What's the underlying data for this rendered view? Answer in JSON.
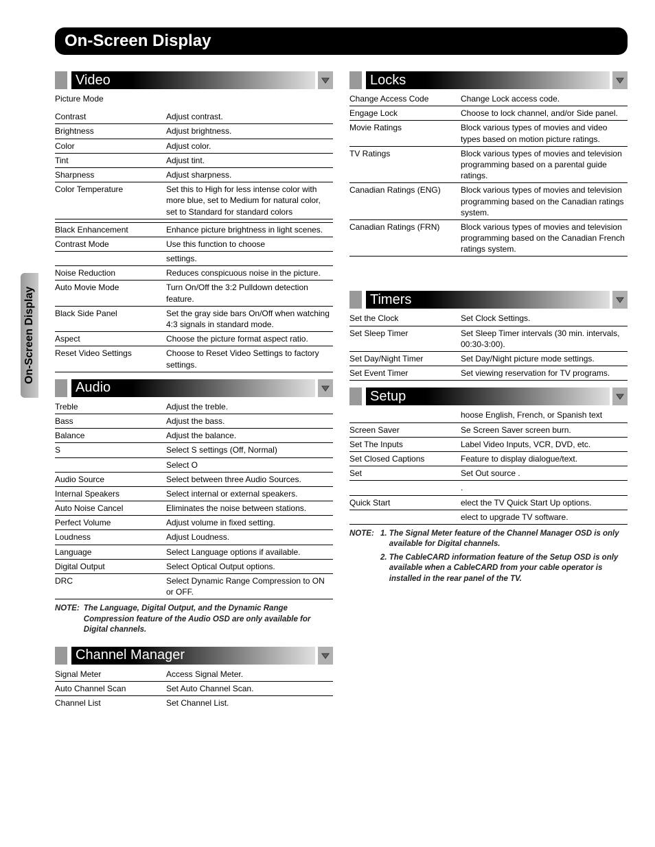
{
  "sideTab": "On-Screen Display",
  "title": "On-Screen Display",
  "left": {
    "video": {
      "title": "Video",
      "preRow": [
        "Picture Mode",
        ""
      ],
      "rows": [
        [
          "Contrast",
          "Adjust contrast."
        ],
        [
          "Brightness",
          "Adjust brightness."
        ],
        [
          "Color",
          "Adjust color."
        ],
        [
          "Tint",
          "Adjust tint."
        ],
        [
          "Sharpness",
          "Adjust sharpness."
        ],
        [
          "Color Temperature",
          "Set this to High for less intense color with more blue, set to Medium for natural color, set to Standard for standard colors"
        ],
        [
          "",
          ""
        ],
        [
          "Black Enhancement",
          "Enhance picture brightness in light scenes."
        ],
        [
          "Contrast Mode",
          "Use this function to choose"
        ],
        [
          "",
          "settings."
        ],
        [
          "Noise Reduction",
          "Reduces conspicuous noise in the picture."
        ],
        [
          "Auto Movie Mode",
          "Turn On/Off the 3:2 Pulldown detection feature."
        ],
        [
          "Black Side Panel",
          "Set the gray side bars On/Off when watching 4:3 signals in standard mode."
        ],
        [
          "Aspect",
          "Choose the picture format aspect ratio."
        ],
        [
          "Reset Video Settings",
          "Choose to Reset Video Settings to factory settings."
        ]
      ]
    },
    "audio": {
      "title": "Audio",
      "rows": [
        [
          "Treble",
          "Adjust the treble."
        ],
        [
          "Bass",
          "Adjust the bass."
        ],
        [
          "Balance",
          "Adjust the balance."
        ],
        [
          "S",
          "Select S            settings (Off, Normal)"
        ],
        [
          "",
          "Select                         O"
        ],
        [
          "Audio Source",
          "Select between three Audio Sources."
        ],
        [
          "Internal Speakers",
          "Select internal or external speakers."
        ],
        [
          "Auto Noise Cancel",
          "Eliminates the noise between stations."
        ],
        [
          "Perfect Volume",
          "Adjust volume in fixed setting."
        ],
        [
          "Loudness",
          "Adjust Loudness."
        ],
        [
          "Language",
          "Select Language options if available."
        ],
        [
          "Digital Output",
          "Select Optical Output options."
        ],
        [
          "DRC",
          "Select Dynamic Range Compression to ON or OFF."
        ]
      ],
      "note": "The Language, Digital Output, and the Dynamic Range Compression feature of the Audio OSD are only available for Digital channels."
    },
    "channel": {
      "title": "Channel Manager",
      "rows": [
        [
          "Signal Meter",
          "Access Signal Meter."
        ],
        [
          "Auto Channel Scan",
          "Set Auto Channel Scan."
        ],
        [
          "Channel List",
          "Set Channel List."
        ]
      ]
    }
  },
  "right": {
    "locks": {
      "title": "Locks",
      "rows": [
        [
          "Change Access Code",
          "Change Lock access code."
        ],
        [
          "Engage Lock",
          "Choose to lock channel, and/or Side panel."
        ],
        [
          "Movie Ratings",
          "Block various types of movies and video types based on motion picture ratings."
        ],
        [
          "TV Ratings",
          "Block various types of movies and television programming based on a parental guide ratings."
        ],
        [
          "Canadian Ratings (ENG)",
          "Block various types of movies and television programming based on the Canadian ratings system."
        ],
        [
          "Canadian Ratings (FRN)",
          "Block various types of movies and television programming based on the Canadian French ratings system."
        ]
      ]
    },
    "timers": {
      "title": "Timers",
      "rows": [
        [
          "Set the Clock",
          "Set Clock Settings."
        ],
        [
          "Set Sleep Timer",
          "Set Sleep Timer intervals (30 min. intervals, 00:30-3:00)."
        ],
        [
          "Set Day/Night Timer",
          "Set Day/Night picture mode settings."
        ],
        [
          "Set Event Timer",
          "Set viewing reservation for TV programs."
        ]
      ]
    },
    "setup": {
      "title": "Setup",
      "rows": [
        [
          "",
          "hoose English, French, or Spanish text"
        ],
        [
          "        Screen Saver",
          "Se      Screen Saver                 screen burn."
        ],
        [
          "Set The Inputs",
          "Label Video Inputs, VCR, DVD, etc."
        ],
        [
          "Set     Closed Captions",
          "Feature to display dialogue/text."
        ],
        [
          "Set",
          "Set Out       source        ."
        ],
        [
          "",
          "                                                ."
        ],
        [
          "        Quick Start",
          " elect the TV Quick Start Up options."
        ],
        [
          "",
          " elect to upgrade TV software."
        ]
      ]
    },
    "note": {
      "label": "NOTE:",
      "items": [
        "The Signal Meter feature of the Channel Manager OSD is only available for Digital channels.",
        "The CableCARD information feature of the Setup OSD is only available when a CableCARD from your cable operator is installed in the rear panel of the TV."
      ]
    }
  },
  "noteLabel": "NOTE:"
}
